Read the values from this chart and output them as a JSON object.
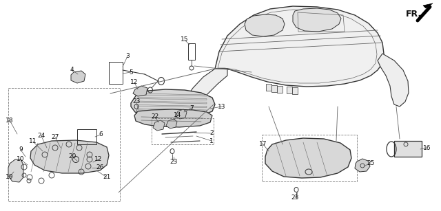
{
  "bg_color": "#ffffff",
  "fig_width": 6.4,
  "fig_height": 3.07,
  "dpi": 100,
  "lc": "#333333",
  "lc2": "#666666"
}
